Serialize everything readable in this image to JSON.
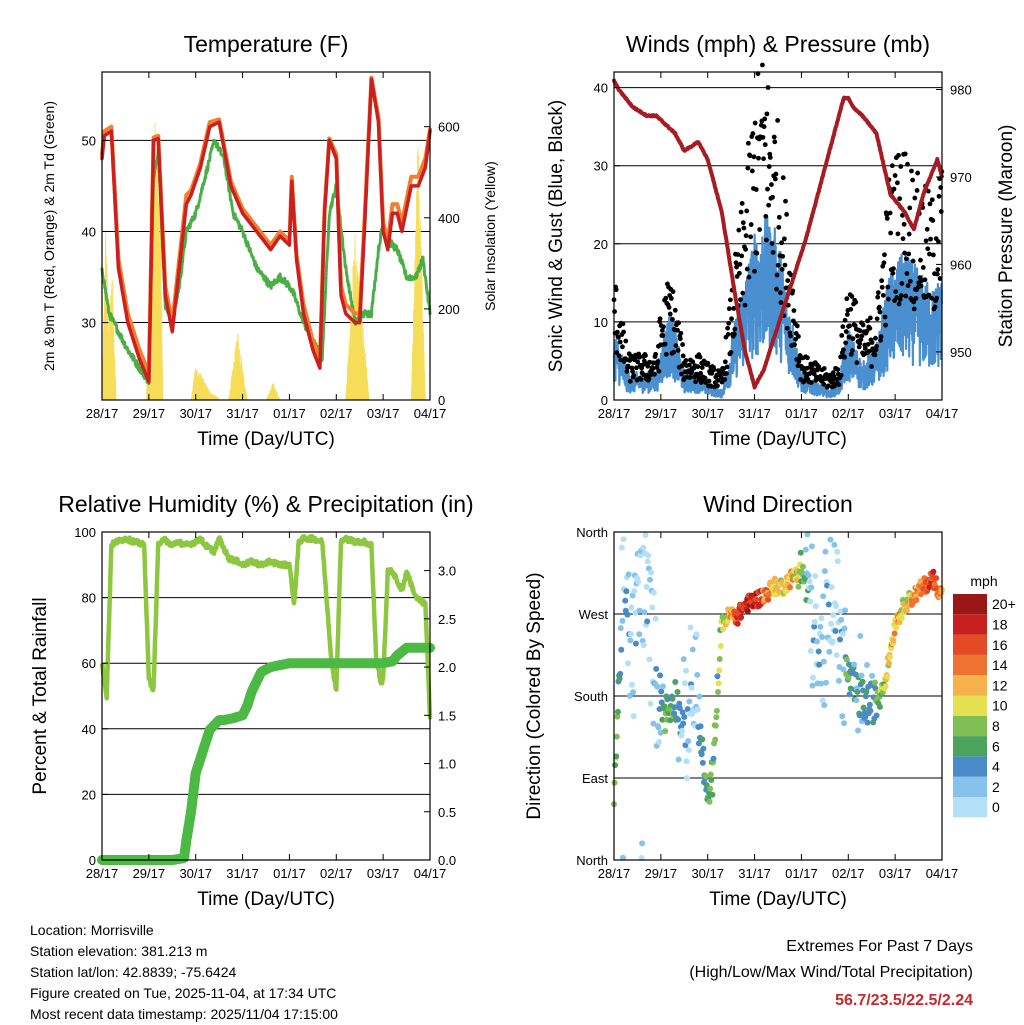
{
  "metadata": {
    "location": "Location: Morrisville",
    "elevation": "Station elevation: 381.213 m",
    "latlon": "Station lat/lon: 42.8839; -75.6424",
    "created": "Figure created on Tue, 2025-11-04, at 17:34 UTC",
    "recent": "Most recent data timestamp: 2025/11/04 17:15:00"
  },
  "extremes": {
    "heading": "Extremes For Past 7 Days",
    "subheading": "(High/Low/Max Wind/Total Precipitation)",
    "values": "56.7/23.5/22.5/2.24"
  },
  "day_labels": [
    "28/17",
    "29/17",
    "30/17",
    "31/17",
    "01/17",
    "02/17",
    "03/17",
    "04/17"
  ],
  "colors": {
    "temp_2m": "#cc2020",
    "temp_9m": "#f07f30",
    "dewpoint": "#4aae46",
    "solar": "#f6dd5a",
    "wind": "#4a90d0",
    "gust": "#000000",
    "pressure": "#a51d23",
    "rh": "#8dc63f",
    "precip": "#4cb944"
  },
  "chart_data": [
    {
      "type": "line",
      "title": "Temperature (F)",
      "xlabel": "Time (Day/UTC)",
      "ylabel": "2m & 9m T (Red, Orange) & 2m Td (Green)",
      "ylabel_right": "Solar Insolation (Yellow)",
      "xlim": [
        0,
        7
      ],
      "ylim": [
        21.5,
        57.5
      ],
      "yticks": [
        30,
        40,
        50
      ],
      "ylim_right": [
        0,
        720
      ],
      "yticks_right": [
        0,
        200,
        400,
        600
      ],
      "series": [
        {
          "name": "2m T",
          "color_key": "temp_2m",
          "x": [
            0,
            0.05,
            0.2,
            0.35,
            0.55,
            0.8,
            1.0,
            1.1,
            1.2,
            1.35,
            1.5,
            1.65,
            1.8,
            1.9,
            2.0,
            2.1,
            2.3,
            2.5,
            2.75,
            3.0,
            3.3,
            3.6,
            3.8,
            4.0,
            4.05,
            4.15,
            4.3,
            4.5,
            4.65,
            4.75,
            4.85,
            5.0,
            5.1,
            5.2,
            5.4,
            5.5,
            5.6,
            5.75,
            5.9,
            6.0,
            6.1,
            6.2,
            6.3,
            6.4,
            6.6,
            6.75,
            6.9,
            7.0
          ],
          "values": [
            48,
            50.5,
            51,
            36,
            30,
            26,
            23.5,
            50,
            50.2,
            33,
            29,
            36,
            43,
            44,
            45.5,
            47,
            51.5,
            52,
            45,
            42,
            40,
            38,
            39.5,
            38.5,
            45.5,
            37,
            31,
            27,
            25,
            42,
            50,
            48,
            33,
            31,
            30,
            30,
            40,
            56.7,
            52,
            40,
            38,
            42,
            42,
            40,
            45,
            45,
            47,
            51
          ]
        },
        {
          "name": "9m T",
          "color_key": "temp_9m",
          "x": [
            0,
            0.05,
            0.2,
            0.35,
            0.55,
            0.8,
            1.0,
            1.1,
            1.2,
            1.35,
            1.5,
            1.65,
            1.8,
            1.9,
            2.0,
            2.1,
            2.3,
            2.5,
            2.75,
            3.0,
            3.3,
            3.6,
            3.8,
            4.0,
            4.05,
            4.15,
            4.3,
            4.5,
            4.65,
            4.75,
            4.85,
            5.0,
            5.1,
            5.2,
            5.4,
            5.5,
            5.6,
            5.75,
            5.9,
            6.0,
            6.1,
            6.2,
            6.3,
            6.4,
            6.6,
            6.75,
            6.9,
            7.0
          ],
          "values": [
            48.5,
            51,
            51.5,
            37,
            31,
            27,
            24.5,
            50.3,
            50.5,
            34,
            30,
            37,
            44,
            44.5,
            46,
            47.5,
            52,
            52.3,
            45.5,
            42.5,
            40.5,
            38.5,
            40,
            39,
            46,
            37.5,
            32,
            28,
            26,
            42.5,
            50.2,
            48.5,
            34,
            32,
            31,
            31,
            41,
            56.9,
            52.5,
            41,
            39,
            43,
            43,
            41,
            46,
            46,
            48,
            51.2
          ]
        },
        {
          "name": "2m Td",
          "color_key": "dewpoint",
          "x": [
            0,
            0.15,
            0.35,
            0.55,
            0.8,
            1.0,
            1.1,
            1.2,
            1.35,
            1.5,
            1.65,
            1.8,
            2.0,
            2.2,
            2.4,
            2.6,
            2.8,
            3.0,
            3.3,
            3.6,
            3.8,
            4.0,
            4.1,
            4.3,
            4.5,
            4.7,
            4.85,
            5.0,
            5.2,
            5.4,
            5.6,
            5.75,
            5.9,
            6.0,
            6.1,
            6.3,
            6.5,
            6.7,
            6.85,
            7.0
          ],
          "values": [
            36,
            31,
            29,
            27,
            25,
            23.5,
            46,
            49,
            32,
            30,
            34,
            40,
            42,
            46,
            50,
            48,
            42,
            40,
            36,
            34,
            35,
            34,
            33,
            30,
            28,
            26,
            42,
            45,
            36,
            30,
            31,
            31,
            38,
            41,
            39,
            38,
            35,
            35,
            37,
            31
          ]
        },
        {
          "name": "Solar Insolation",
          "color_key": "solar",
          "axis": "right",
          "x": [
            0.0,
            0.08,
            0.15,
            0.22,
            0.3,
            0.95,
            1.05,
            1.15,
            1.25,
            1.3,
            1.5,
            1.6,
            1.9,
            2.0,
            2.15,
            2.3,
            2.55,
            2.7,
            2.9,
            3.1,
            3.5,
            3.65,
            3.8,
            4.1,
            4.4,
            4.7,
            5.0,
            5.2,
            5.4,
            5.6,
            5.7,
            5.8,
            5.9,
            6.1,
            6.6,
            6.75,
            6.9,
            7.0
          ],
          "values": [
            0,
            400,
            180,
            320,
            0,
            0,
            520,
            630,
            450,
            0,
            0,
            0,
            0,
            80,
            50,
            20,
            0,
            0,
            160,
            0,
            0,
            40,
            0,
            0,
            0,
            0,
            0,
            0,
            380,
            140,
            0,
            0,
            0,
            0,
            0,
            620,
            0,
            0
          ]
        }
      ]
    },
    {
      "type": "scatter",
      "title": "Winds (mph) & Pressure (mb)",
      "xlabel": "Time (Day/UTC)",
      "ylabel": "Sonic Wind & Gust (Blue, Black)",
      "ylabel_right": "Station Pressure (Maroon)",
      "xlim": [
        0,
        7
      ],
      "ylim": [
        0,
        42
      ],
      "yticks": [
        0,
        10,
        20,
        30,
        40
      ],
      "ylim_right": [
        944.5,
        982
      ],
      "yticks_right": [
        950,
        960,
        970,
        980
      ],
      "series": [
        {
          "name": "Sonic Wind envelope (mph)",
          "color_key": "wind",
          "x": [
            0,
            0.3,
            0.6,
            0.9,
            1.0,
            1.2,
            1.5,
            1.8,
            2.0,
            2.3,
            2.6,
            2.8,
            3.0,
            3.2,
            3.5,
            3.7,
            4.0,
            4.3,
            4.6,
            4.8,
            5.0,
            5.3,
            5.6,
            5.9,
            6.2,
            6.5,
            6.8,
            7.0
          ],
          "values": [
            8,
            3,
            3,
            3,
            6,
            10,
            3,
            3,
            2,
            1,
            9,
            14,
            18,
            20,
            18,
            12,
            3,
            2,
            1,
            2,
            8,
            4,
            6,
            14,
            16,
            14,
            12,
            14
          ]
        },
        {
          "name": "Gust envelope (mph)",
          "color_key": "gust",
          "x": [
            0,
            0.3,
            0.6,
            0.9,
            1.0,
            1.2,
            1.5,
            1.8,
            2.0,
            2.3,
            2.6,
            2.8,
            3.0,
            3.2,
            3.5,
            3.7,
            4.0,
            4.3,
            4.6,
            4.8,
            5.0,
            5.3,
            5.6,
            5.9,
            6.2,
            6.5,
            6.8,
            7.0
          ],
          "values": [
            14,
            5,
            5,
            5,
            10,
            14,
            5,
            5,
            4,
            3,
            16,
            24,
            34,
            38,
            30,
            20,
            5,
            4,
            3,
            4,
            14,
            8,
            10,
            26,
            28,
            24,
            22,
            26
          ]
        },
        {
          "name": "Station Pressure (mb)",
          "color_key": "pressure",
          "axis": "right",
          "x": [
            0,
            0.1,
            0.4,
            0.7,
            0.9,
            1.3,
            1.5,
            1.8,
            2.0,
            2.3,
            2.6,
            2.8,
            3.0,
            3.2,
            3.5,
            3.8,
            4.1,
            4.4,
            4.7,
            4.9,
            5.0,
            5.1,
            5.3,
            5.6,
            5.9,
            6.2,
            6.4,
            6.6,
            6.9,
            7.0
          ],
          "values": [
            981,
            980,
            978,
            977,
            977,
            975,
            973,
            974,
            972,
            966,
            956,
            950,
            946,
            948,
            953,
            958,
            963,
            969,
            975,
            979,
            979,
            978,
            977,
            975,
            968,
            966,
            964,
            968,
            972,
            970
          ]
        }
      ]
    },
    {
      "type": "line",
      "title": "Relative Humidity (%) & Precipitation (in)",
      "xlabel": "Time (Day/UTC)",
      "ylabel": "Percent & Total Rainfall",
      "xlim": [
        0,
        7
      ],
      "ylim": [
        0,
        100
      ],
      "yticks": [
        0,
        20,
        40,
        60,
        80,
        100
      ],
      "ylim_right": [
        0,
        3.4
      ],
      "yticks_right": [
        0.0,
        0.5,
        1.0,
        1.5,
        2.0,
        2.5,
        3.0
      ],
      "series": [
        {
          "name": "Relative Humidity (%)",
          "color_key": "rh",
          "x": [
            0,
            0.1,
            0.2,
            0.3,
            0.5,
            0.7,
            0.9,
            1.0,
            1.1,
            1.2,
            1.3,
            1.5,
            1.6,
            1.8,
            2.0,
            2.1,
            2.2,
            2.4,
            2.5,
            2.7,
            2.9,
            3.0,
            3.2,
            3.4,
            3.6,
            3.8,
            4.0,
            4.1,
            4.2,
            4.3,
            4.5,
            4.7,
            4.9,
            5.0,
            5.1,
            5.2,
            5.4,
            5.6,
            5.75,
            5.85,
            5.95,
            6.0,
            6.1,
            6.2,
            6.4,
            6.5,
            6.7,
            6.9,
            7.0
          ],
          "values": [
            60,
            50,
            96,
            97,
            98,
            97,
            96,
            55,
            52,
            96,
            98,
            96,
            97,
            96,
            97,
            98,
            96,
            94,
            98,
            92,
            91,
            90,
            91,
            90,
            91,
            90,
            90,
            78,
            97,
            98,
            98,
            97,
            60,
            52,
            97,
            98,
            97,
            97,
            96,
            62,
            54,
            55,
            88,
            88,
            82,
            88,
            80,
            78,
            44
          ]
        },
        {
          "name": "Total Rainfall (in)",
          "color_key": "precip",
          "axis": "right",
          "x": [
            0,
            0.5,
            1.0,
            1.5,
            1.75,
            1.8,
            1.9,
            2.0,
            2.1,
            2.2,
            2.3,
            2.4,
            2.5,
            2.6,
            2.8,
            3.0,
            3.1,
            3.2,
            3.3,
            3.4,
            3.6,
            3.8,
            4.0,
            4.2,
            4.5,
            5.0,
            5.5,
            6.0,
            6.2,
            6.3,
            6.5,
            7.0
          ],
          "values": [
            0,
            0,
            0,
            0,
            0.02,
            0.2,
            0.5,
            0.9,
            1.05,
            1.2,
            1.35,
            1.4,
            1.45,
            1.45,
            1.47,
            1.5,
            1.6,
            1.75,
            1.85,
            1.95,
            2.0,
            2.02,
            2.04,
            2.04,
            2.04,
            2.04,
            2.04,
            2.04,
            2.06,
            2.12,
            2.2,
            2.2
          ]
        }
      ]
    },
    {
      "type": "scatter",
      "title": "Wind Direction",
      "xlabel": "Time (Day/UTC)",
      "ylabel": "Direction (Colored By Speed)",
      "xlim": [
        0,
        7
      ],
      "ylim": [
        0,
        360
      ],
      "yticks": [
        0,
        90,
        180,
        270,
        360
      ],
      "ytick_labels": [
        "North",
        "East",
        "South",
        "West",
        "North"
      ],
      "legend": {
        "title": "mph",
        "labels": [
          "0",
          "2",
          "4",
          "6",
          "8",
          "10",
          "12",
          "14",
          "16",
          "18",
          "20+"
        ],
        "colors": [
          "#b3e0f7",
          "#86c3ea",
          "#4b8ac9",
          "#4ba35e",
          "#7fbf54",
          "#e4e050",
          "#f5b24b",
          "#ee7330",
          "#e44a24",
          "#c8201f",
          "#9a1717"
        ]
      },
      "series": [
        {
          "name": "Direction (deg) band center",
          "x": [
            0,
            0.2,
            0.4,
            0.6,
            0.9,
            1.1,
            1.3,
            1.5,
            1.7,
            1.9,
            2.0,
            2.1,
            2.3,
            2.5,
            2.6,
            2.8,
            3.0,
            3.2,
            3.4,
            3.6,
            3.8,
            4.0,
            4.2,
            4.4,
            4.6,
            4.8,
            5.0,
            5.2,
            5.4,
            5.6,
            5.8,
            6.0,
            6.2,
            6.4,
            6.6,
            6.8,
            7.0
          ],
          "values": [
            70,
            300,
            220,
            320,
            200,
            160,
            180,
            140,
            200,
            110,
            60,
            90,
            260,
            270,
            265,
            280,
            285,
            290,
            300,
            300,
            310,
            320,
            280,
            200,
            310,
            250,
            200,
            180,
            170,
            175,
            200,
            260,
            280,
            290,
            300,
            310,
            290
          ]
        },
        {
          "name": "Speed (mph) at band center",
          "x": [
            0,
            0.2,
            0.4,
            0.6,
            0.9,
            1.1,
            1.3,
            1.5,
            1.7,
            1.9,
            2.0,
            2.1,
            2.3,
            2.5,
            2.6,
            2.8,
            3.0,
            3.2,
            3.4,
            3.6,
            3.8,
            4.0,
            4.2,
            4.4,
            4.6,
            4.8,
            5.0,
            5.2,
            5.4,
            5.6,
            5.8,
            6.0,
            6.2,
            6.4,
            6.6,
            6.8,
            7.0
          ],
          "values": [
            8,
            2,
            1,
            1,
            1,
            6,
            5,
            2,
            1,
            5,
            6,
            6,
            8,
            12,
            16,
            18,
            18,
            15,
            12,
            10,
            12,
            8,
            1,
            1,
            1,
            1,
            6,
            4,
            4,
            6,
            10,
            12,
            10,
            12,
            14,
            16,
            14
          ]
        }
      ]
    }
  ]
}
